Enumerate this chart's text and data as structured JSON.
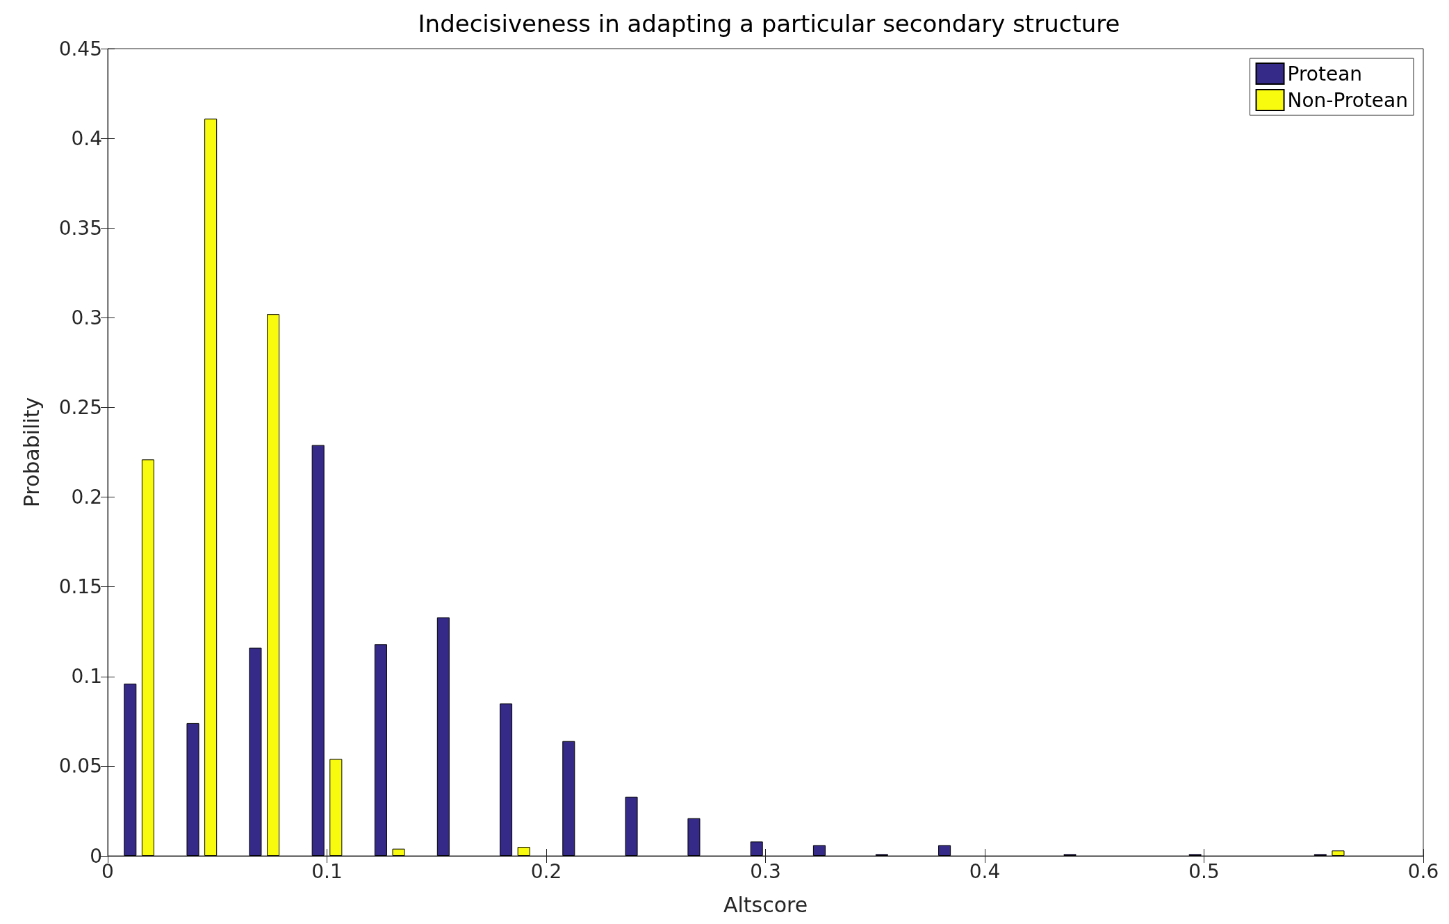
{
  "chart_data": {
    "type": "bar",
    "title": "Indecisiveness in adapting a particular secondary structure",
    "xlabel": "Altscore",
    "ylabel": "Probability",
    "x": [
      0.0143,
      0.0429,
      0.0714,
      0.1,
      0.1286,
      0.1571,
      0.1857,
      0.2143,
      0.2429,
      0.2714,
      0.3,
      0.3286,
      0.3571,
      0.3857,
      0.4143,
      0.4429,
      0.4714,
      0.5,
      0.5286,
      0.5571
    ],
    "series": [
      {
        "name": "Protean",
        "color": "#352a87",
        "values": [
          0.096,
          0.074,
          0.116,
          0.229,
          0.118,
          0.133,
          0.085,
          0.064,
          0.033,
          0.021,
          0.008,
          0.006,
          0.001,
          0.006,
          0,
          0.001,
          0,
          0.001,
          0,
          0.001
        ]
      },
      {
        "name": "Non-Protean",
        "color": "#f9fb0e",
        "values": [
          0.221,
          0.411,
          0.302,
          0.054,
          0.004,
          0,
          0.005,
          0,
          0,
          0,
          0,
          0,
          0,
          0,
          0,
          0,
          0,
          0,
          0,
          0.003
        ]
      }
    ],
    "xlim": [
      0,
      0.6
    ],
    "xticks": [
      0,
      0.1,
      0.2,
      0.3,
      0.4,
      0.5,
      0.6
    ],
    "ylim": [
      0,
      0.45
    ],
    "yticks": [
      0,
      0.05,
      0.1,
      0.15,
      0.2,
      0.25,
      0.3,
      0.35,
      0.4,
      0.45
    ],
    "grid": false,
    "legend": "top right"
  }
}
